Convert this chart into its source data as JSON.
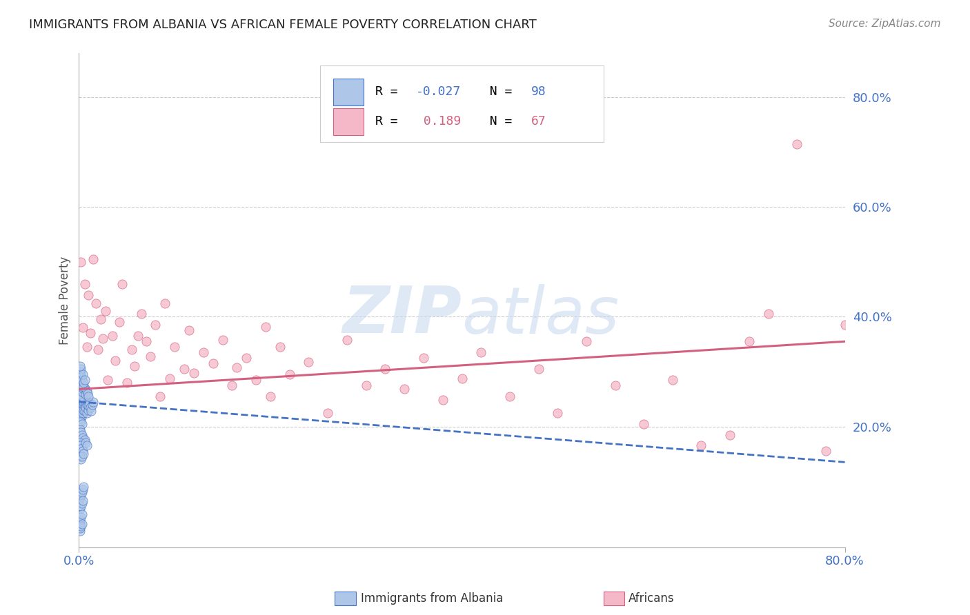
{
  "title": "IMMIGRANTS FROM ALBANIA VS AFRICAN FEMALE POVERTY CORRELATION CHART",
  "source_text": "Source: ZipAtlas.com",
  "ylabel": "Female Poverty",
  "xlim": [
    0.0,
    0.8
  ],
  "ylim": [
    -0.02,
    0.88
  ],
  "yticks": [
    0.2,
    0.4,
    0.6,
    0.8
  ],
  "ytick_labels": [
    "20.0%",
    "40.0%",
    "60.0%",
    "80.0%"
  ],
  "blue_label": "Immigrants from Albania",
  "pink_label": "Africans",
  "blue_R": "-0.027",
  "blue_N": "98",
  "pink_R": "0.189",
  "pink_N": "67",
  "blue_dot_color": "#aec6e8",
  "pink_dot_color": "#f5b8c8",
  "blue_line_color": "#4472c4",
  "pink_line_color": "#d46080",
  "watermark_zip_color": "#c5d8ee",
  "watermark_atlas_color": "#c5d8ee",
  "background_color": "#ffffff",
  "grid_color": "#cccccc",
  "title_color": "#222222",
  "axis_label_color": "#4472c4",
  "legend_R_color": "#000000",
  "legend_N_color": "#4472c4",
  "blue_trend_start": 0.245,
  "blue_trend_end": 0.135,
  "pink_trend_start": 0.268,
  "pink_trend_end": 0.355,
  "blue_scatter_x": [
    0.0005,
    0.001,
    0.001,
    0.001,
    0.001,
    0.001,
    0.001,
    0.002,
    0.002,
    0.002,
    0.002,
    0.002,
    0.002,
    0.002,
    0.003,
    0.003,
    0.003,
    0.003,
    0.003,
    0.004,
    0.004,
    0.004,
    0.005,
    0.005,
    0.005,
    0.006,
    0.006,
    0.006,
    0.007,
    0.007,
    0.008,
    0.008,
    0.009,
    0.01,
    0.01,
    0.011,
    0.012,
    0.013,
    0.014,
    0.015,
    0.001,
    0.001,
    0.002,
    0.002,
    0.003,
    0.003,
    0.004,
    0.005,
    0.006,
    0.007,
    0.001,
    0.001,
    0.002,
    0.002,
    0.003,
    0.003,
    0.004,
    0.005,
    0.006,
    0.008,
    0.001,
    0.001,
    0.002,
    0.002,
    0.003,
    0.003,
    0.004,
    0.005,
    0.007,
    0.009,
    0.001,
    0.001,
    0.002,
    0.002,
    0.003,
    0.004,
    0.005,
    0.006,
    0.008,
    0.01,
    0.001,
    0.001,
    0.002,
    0.003,
    0.004,
    0.005,
    0.001,
    0.002,
    0.003,
    0.004,
    0.001,
    0.001,
    0.002,
    0.003,
    0.001,
    0.001,
    0.002,
    0.003
  ],
  "blue_scatter_y": [
    0.245,
    0.23,
    0.25,
    0.24,
    0.22,
    0.235,
    0.215,
    0.25,
    0.225,
    0.24,
    0.215,
    0.235,
    0.245,
    0.228,
    0.248,
    0.235,
    0.22,
    0.242,
    0.23,
    0.24,
    0.225,
    0.25,
    0.24,
    0.23,
    0.245,
    0.238,
    0.248,
    0.228,
    0.242,
    0.235,
    0.24,
    0.225,
    0.245,
    0.23,
    0.238,
    0.242,
    0.235,
    0.228,
    0.24,
    0.245,
    0.26,
    0.21,
    0.265,
    0.208,
    0.255,
    0.205,
    0.262,
    0.268,
    0.27,
    0.258,
    0.195,
    0.28,
    0.19,
    0.285,
    0.185,
    0.275,
    0.18,
    0.272,
    0.175,
    0.265,
    0.17,
    0.29,
    0.165,
    0.295,
    0.16,
    0.285,
    0.155,
    0.28,
    0.17,
    0.26,
    0.145,
    0.3,
    0.14,
    0.305,
    0.145,
    0.295,
    0.15,
    0.285,
    0.165,
    0.255,
    0.07,
    0.31,
    0.075,
    0.08,
    0.085,
    0.09,
    0.05,
    0.055,
    0.06,
    0.065,
    0.025,
    0.03,
    0.035,
    0.04,
    0.01,
    0.015,
    0.018,
    0.022
  ],
  "pink_scatter_x": [
    0.002,
    0.004,
    0.006,
    0.008,
    0.01,
    0.012,
    0.015,
    0.018,
    0.02,
    0.023,
    0.025,
    0.028,
    0.03,
    0.035,
    0.038,
    0.042,
    0.045,
    0.05,
    0.055,
    0.058,
    0.062,
    0.065,
    0.07,
    0.075,
    0.08,
    0.085,
    0.09,
    0.095,
    0.1,
    0.11,
    0.115,
    0.12,
    0.13,
    0.14,
    0.15,
    0.16,
    0.165,
    0.175,
    0.185,
    0.195,
    0.2,
    0.21,
    0.22,
    0.24,
    0.26,
    0.28,
    0.3,
    0.32,
    0.34,
    0.36,
    0.38,
    0.4,
    0.42,
    0.45,
    0.48,
    0.5,
    0.53,
    0.56,
    0.59,
    0.62,
    0.65,
    0.68,
    0.7,
    0.72,
    0.75,
    0.78,
    0.8
  ],
  "pink_scatter_y": [
    0.5,
    0.38,
    0.46,
    0.345,
    0.44,
    0.37,
    0.505,
    0.425,
    0.34,
    0.395,
    0.36,
    0.41,
    0.285,
    0.365,
    0.32,
    0.39,
    0.46,
    0.28,
    0.34,
    0.31,
    0.365,
    0.405,
    0.355,
    0.328,
    0.385,
    0.255,
    0.425,
    0.288,
    0.345,
    0.305,
    0.375,
    0.298,
    0.335,
    0.315,
    0.358,
    0.275,
    0.308,
    0.325,
    0.285,
    0.382,
    0.255,
    0.345,
    0.295,
    0.318,
    0.225,
    0.358,
    0.275,
    0.305,
    0.268,
    0.325,
    0.248,
    0.288,
    0.335,
    0.255,
    0.305,
    0.225,
    0.355,
    0.275,
    0.205,
    0.285,
    0.165,
    0.185,
    0.355,
    0.405,
    0.715,
    0.155,
    0.385
  ]
}
